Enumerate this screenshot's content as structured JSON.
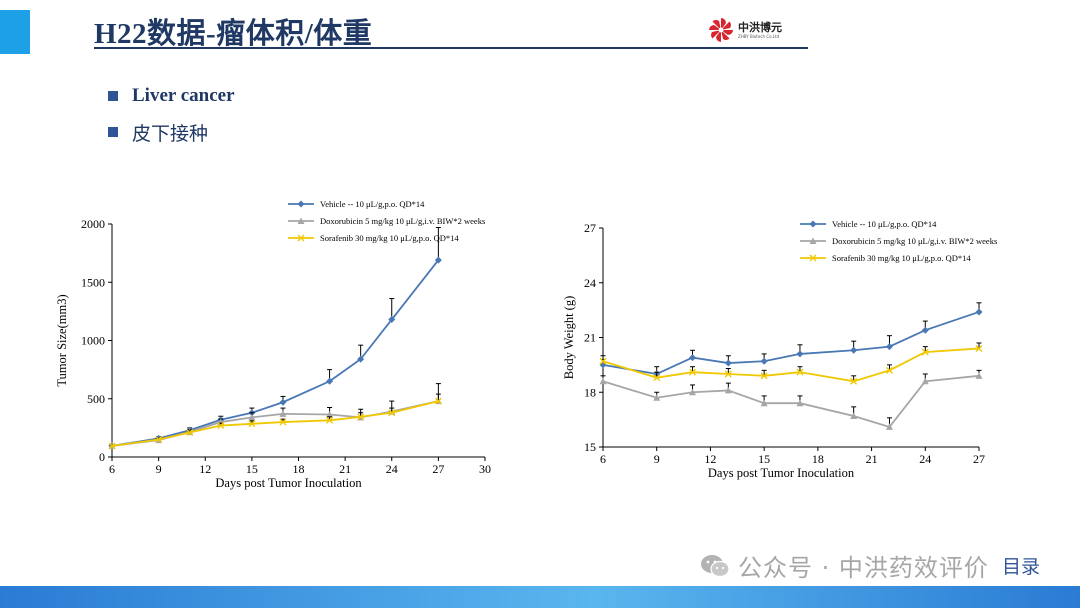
{
  "header": {
    "title": "H22数据-瘤体积/体重",
    "logo_cn": "中洪博元",
    "logo_en": "ZHBY Biotech Co.Ltd"
  },
  "bullets": [
    {
      "text": "Liver cancer"
    },
    {
      "text": "皮下接种"
    }
  ],
  "colors": {
    "vehicle": "#4a78b5",
    "doxorubicin": "#a6a6a6",
    "sorafenib": "#f0c800",
    "title": "#1f3864",
    "accent": "#1ea0e6"
  },
  "watermark": {
    "text": "公众号 · 中洪药效评价",
    "icon": "wechat-icon"
  },
  "nav": {
    "label": "目录"
  },
  "chart_data": [
    {
      "type": "line",
      "xlabel": "Days post Tumor Inoculation",
      "ylabel": "Tumor Size(mm3)",
      "xlim": [
        6,
        30
      ],
      "ylim": [
        0,
        2000
      ],
      "xticks": [
        6,
        9,
        12,
        15,
        18,
        21,
        24,
        27,
        30
      ],
      "yticks": [
        0,
        500,
        1000,
        1500,
        2000
      ],
      "legend_position": "top",
      "series": [
        {
          "name": "Vehicle -- 10 μL/g,p.o. QD*14",
          "color_key": "vehicle",
          "marker": "diamond",
          "x": [
            6,
            9,
            11,
            13,
            15,
            17,
            20,
            22,
            24,
            27
          ],
          "y": [
            95,
            160,
            230,
            320,
            380,
            470,
            650,
            840,
            1180,
            1690
          ],
          "err": [
            10,
            15,
            20,
            30,
            40,
            50,
            100,
            120,
            180,
            280
          ]
        },
        {
          "name": "Doxorubicin 5 mg/kg 10 μL/g,i.v. BIW*2 weeks",
          "color_key": "doxorubicin",
          "marker": "triangle",
          "x": [
            6,
            9,
            11,
            13,
            15,
            17,
            20,
            22,
            24,
            27
          ],
          "y": [
            95,
            145,
            215,
            300,
            340,
            370,
            365,
            340,
            390,
            480
          ],
          "err": [
            10,
            15,
            20,
            25,
            40,
            50,
            60,
            70,
            90,
            150
          ]
        },
        {
          "name": "Sorafenib 30 mg/kg 10 μL/g,p.o. QD*14",
          "color_key": "sorafenib",
          "marker": "x",
          "x": [
            6,
            9,
            11,
            13,
            15,
            17,
            20,
            22,
            24,
            27
          ],
          "y": [
            95,
            150,
            210,
            270,
            285,
            300,
            315,
            345,
            380,
            480
          ],
          "err": [
            8,
            12,
            15,
            20,
            25,
            25,
            30,
            35,
            40,
            60
          ]
        }
      ]
    },
    {
      "type": "line",
      "xlabel": "Days post Tumor Inoculation",
      "ylabel": "Body Weight (g)",
      "xlim": [
        6,
        27
      ],
      "ylim": [
        15,
        27
      ],
      "xticks": [
        6,
        9,
        12,
        15,
        18,
        21,
        24,
        27
      ],
      "yticks": [
        15,
        18,
        21,
        24,
        27
      ],
      "legend_position": "top",
      "series": [
        {
          "name": "Vehicle -- 10 μL/g,p.o. QD*14",
          "color_key": "vehicle",
          "marker": "diamond",
          "x": [
            6,
            9,
            11,
            13,
            15,
            17,
            20,
            22,
            24,
            27
          ],
          "y": [
            19.5,
            19.0,
            19.9,
            19.6,
            19.7,
            20.1,
            20.3,
            20.5,
            21.4,
            22.4
          ],
          "err": [
            0.3,
            0.4,
            0.4,
            0.4,
            0.4,
            0.5,
            0.5,
            0.6,
            0.5,
            0.5
          ]
        },
        {
          "name": "Doxorubicin 5 mg/kg 10 μL/g,i.v. BIW*2 weeks",
          "color_key": "doxorubicin",
          "marker": "triangle",
          "x": [
            6,
            9,
            11,
            13,
            15,
            17,
            20,
            22,
            24,
            27
          ],
          "y": [
            18.6,
            17.7,
            18.0,
            18.1,
            17.4,
            17.4,
            16.7,
            16.1,
            18.6,
            18.9
          ],
          "err": [
            0.3,
            0.3,
            0.4,
            0.4,
            0.4,
            0.4,
            0.5,
            0.5,
            0.4,
            0.3
          ]
        },
        {
          "name": "Sorafenib 30 mg/kg 10 μL/g,p.o. QD*14",
          "color_key": "sorafenib",
          "marker": "x",
          "x": [
            6,
            9,
            11,
            13,
            15,
            17,
            20,
            22,
            24,
            27
          ],
          "y": [
            19.7,
            18.8,
            19.1,
            19.0,
            18.9,
            19.1,
            18.6,
            19.2,
            20.2,
            20.4
          ],
          "err": [
            0.3,
            0.3,
            0.3,
            0.3,
            0.3,
            0.3,
            0.3,
            0.3,
            0.3,
            0.3
          ]
        }
      ]
    }
  ]
}
